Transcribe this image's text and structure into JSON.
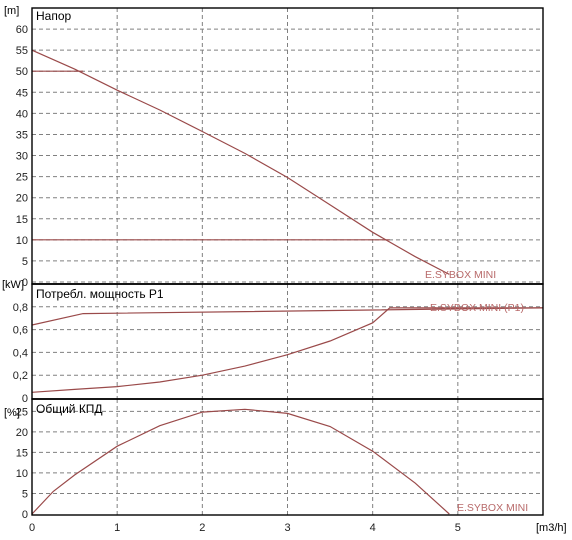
{
  "colors": {
    "curve": "#9a4a4a",
    "curve_label": "#b86a6a",
    "grid": "#808080",
    "frame": "#000000"
  },
  "chart_data": [
    {
      "type": "line",
      "title": "Напор",
      "ylabel": "[m]",
      "ylim": [
        0,
        65
      ],
      "yticks": [
        0,
        5,
        10,
        15,
        20,
        25,
        30,
        35,
        40,
        45,
        50,
        55,
        60
      ],
      "xlim": [
        0,
        6
      ],
      "grid": true,
      "series": [
        {
          "name": "E.SYBOX MINI",
          "x": [
            0,
            0.5,
            1,
            1.5,
            2,
            2.5,
            3,
            3.5,
            4,
            4.5,
            4.9
          ],
          "y": [
            55,
            50.5,
            45.5,
            40.8,
            35.7,
            30.5,
            24.8,
            18.3,
            11.8,
            6,
            1.8
          ]
        },
        {
          "name": "",
          "x": [
            0,
            0.6
          ],
          "y": [
            50,
            50
          ]
        },
        {
          "name": "",
          "x": [
            0,
            4.2
          ],
          "y": [
            10,
            10
          ]
        }
      ]
    },
    {
      "type": "line",
      "title": "Потребл. мощность P1",
      "ylabel": "[kW]",
      "ylim": [
        0,
        1
      ],
      "yticks": [
        "0",
        "0,2",
        "0,4",
        "0,6",
        "0,8"
      ],
      "yticks_values": [
        0,
        0.2,
        0.4,
        0.6,
        0.8
      ],
      "xlim": [
        0,
        6
      ],
      "grid": true,
      "series": [
        {
          "name": "E.SYBOX MINI (P1)",
          "x": [
            0,
            0.5,
            1,
            1.5,
            2,
            2.5,
            3,
            3.5,
            4,
            4.2,
            6
          ],
          "y": [
            0.05,
            0.075,
            0.1,
            0.14,
            0.2,
            0.28,
            0.38,
            0.5,
            0.66,
            0.79,
            0.79
          ]
        },
        {
          "name": "",
          "x": [
            0,
            0.6,
            6
          ],
          "y": [
            0.64,
            0.74,
            0.79
          ]
        }
      ]
    },
    {
      "type": "line",
      "title": "Общий КПД",
      "ylabel": "[%]",
      "ylim": [
        0,
        28
      ],
      "yticks": [
        0,
        5,
        10,
        15,
        20,
        25
      ],
      "xlim": [
        0,
        6
      ],
      "xlabel": "[m3/h]",
      "xticks": [
        0,
        1,
        2,
        3,
        4,
        5
      ],
      "grid": true,
      "series": [
        {
          "name": "E.SYBOX MINI",
          "x": [
            0,
            0.25,
            0.5,
            1,
            1.5,
            2,
            2.5,
            3,
            3.5,
            4,
            4.5,
            4.9
          ],
          "y": [
            0,
            5.5,
            9.5,
            16.5,
            21.5,
            24.8,
            25.5,
            24.5,
            21.3,
            15.3,
            7.5,
            0
          ]
        }
      ]
    }
  ]
}
